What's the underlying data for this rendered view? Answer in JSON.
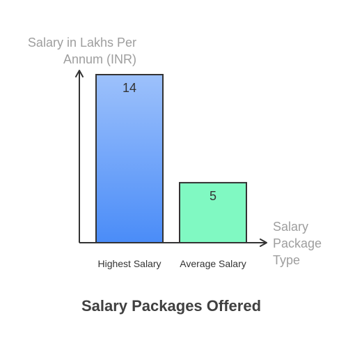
{
  "chart_data": {
    "type": "bar",
    "title": "Salary Packages Offered",
    "ylabel_lines": [
      "Salary in Lakhs Per",
      "Annum (INR)"
    ],
    "xlabel_lines": [
      "Salary",
      "Package",
      "Type"
    ],
    "categories": [
      "Highest Salary",
      "Average Salary"
    ],
    "values": [
      14,
      5
    ],
    "value_labels": [
      "14",
      "5"
    ],
    "ylim": [
      0,
      14
    ],
    "grid": false,
    "legend": "none",
    "colors": {
      "bars": [
        {
          "top": "#9dc1fb",
          "bottom": "#4a8cf8"
        },
        {
          "top": "#80f9c2",
          "bottom": "#80f9c2"
        }
      ],
      "bar_stroke": "#333333",
      "axis": "#333333",
      "axis_label": "#9e9e9e",
      "tick_label": "#333333",
      "value_label": "#333333",
      "title": "#404040"
    }
  }
}
